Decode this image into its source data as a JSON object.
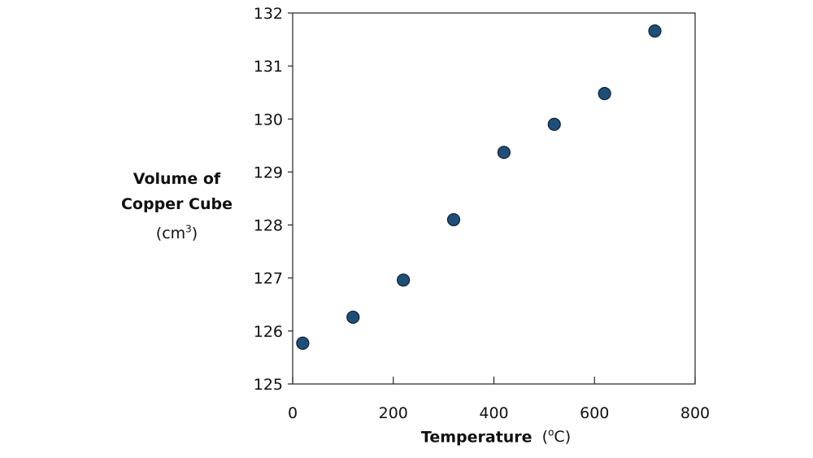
{
  "chart_data": {
    "type": "scatter",
    "title": "",
    "xlabel": "Temperature",
    "xlabel_unit": "(oC)",
    "xlabel_unit_base": "(",
    "xlabel_unit_sup": "o",
    "xlabel_unit_end": "C)",
    "ylabel_line1": "Volume of",
    "ylabel_line2": "Copper Cube",
    "ylabel_unit_base": "(cm",
    "ylabel_unit_sup": "3",
    "ylabel_unit_end": ")",
    "xlim": [
      0,
      800
    ],
    "ylim": [
      125,
      132
    ],
    "xticks": [
      0,
      200,
      400,
      600,
      800
    ],
    "yticks": [
      125,
      126,
      127,
      128,
      129,
      130,
      131,
      132
    ],
    "grid": false,
    "series": [
      {
        "name": "Volume",
        "color": "#1f4e79",
        "x": [
          20,
          120,
          220,
          320,
          420,
          520,
          620,
          720
        ],
        "y": [
          125.77,
          126.26,
          126.96,
          128.1,
          129.37,
          129.9,
          130.48,
          131.66
        ]
      }
    ]
  }
}
